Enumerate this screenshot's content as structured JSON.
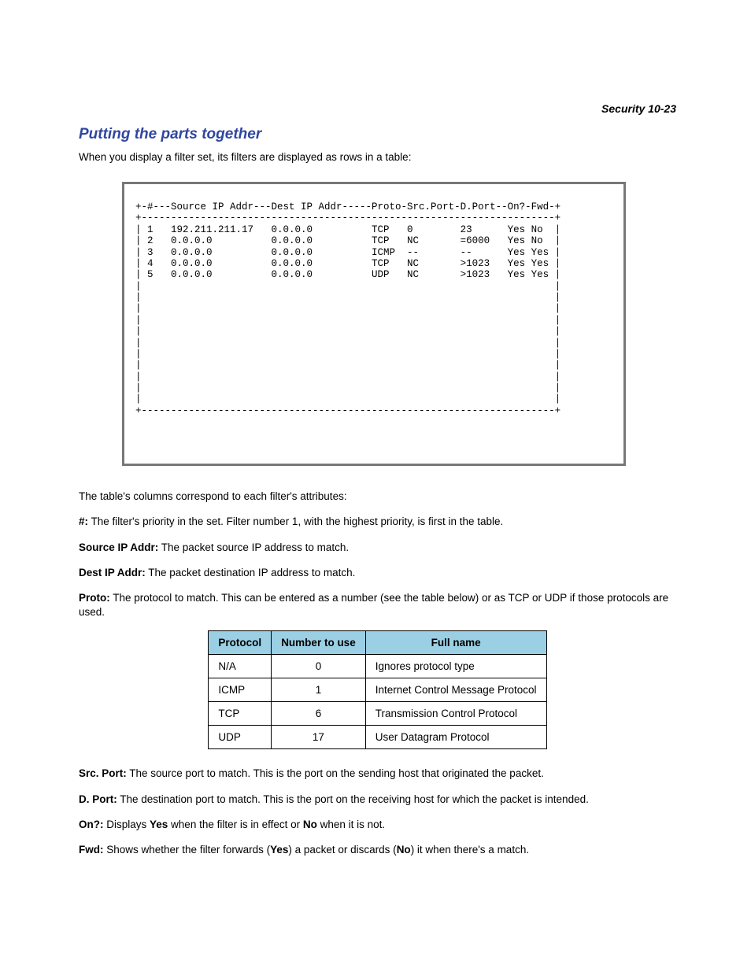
{
  "header": {
    "text": "Security   10-23"
  },
  "heading": "Putting the parts together",
  "intro": "When you display a filter set, its filters are displayed as rows in a table:",
  "terminal": "+-#---Source IP Addr---Dest IP Addr-----Proto-Src.Port-D.Port--On?-Fwd-+\n+----------------------------------------------------------------------+\n| 1   192.211.211.17   0.0.0.0          TCP   0        23      Yes No  |\n| 2   0.0.0.0          0.0.0.0          TCP   NC       =6000   Yes No  |\n| 3   0.0.0.0          0.0.0.0          ICMP  --       --      Yes Yes |\n| 4   0.0.0.0          0.0.0.0          TCP   NC       >1023   Yes Yes |\n| 5   0.0.0.0          0.0.0.0          UDP   NC       >1023   Yes Yes |\n|                                                                      |\n|                                                                      |\n|                                                                      |\n|                                                                      |\n|                                                                      |\n|                                                                      |\n|                                                                      |\n|                                                                      |\n|                                                                      |\n|                                                                      |\n|                                                                      |\n+----------------------------------------------------------------------+",
  "columns_intro": "The table's columns correspond to each filter's attributes:",
  "defs": {
    "hash": {
      "term": "#:",
      "text": " The filter's priority in the set. Filter number 1, with the highest priority, is first in the table."
    },
    "source": {
      "term": "Source IP Addr:",
      "text": " The packet source IP address to match."
    },
    "dest": {
      "term": "Dest IP Addr:",
      "text": " The packet destination IP address to match."
    },
    "proto": {
      "term": "Proto:",
      "text": " The protocol to match. This can be entered as a number (see the table below) or as TCP or UDP if those protocols are used."
    },
    "srcport": {
      "term": "Src. Port:",
      "text": " The source port to match. This is the port on the sending host that originated the packet."
    },
    "dport": {
      "term": "D. Port:",
      "text": " The destination port to match. This is the port on the receiving host for which the packet is intended."
    },
    "on_pre": {
      "term": "On?:",
      "pre": " Displays ",
      "yes": "Yes",
      "mid": " when the filter is in effect or ",
      "no": "No",
      "post": " when it is not."
    },
    "fwd": {
      "term": "Fwd:",
      "pre": " Shows whether the filter forwards (",
      "yes": "Yes",
      "mid": ") a packet or discards (",
      "no": "No",
      "post": ") it when there's a match."
    }
  },
  "table": {
    "headers": [
      "Protocol",
      "Number to use",
      "Full name"
    ],
    "rows": [
      [
        "N/A",
        "0",
        "Ignores protocol type"
      ],
      [
        "ICMP",
        "1",
        "Internet Control Message Protocol"
      ],
      [
        "TCP",
        "6",
        "Transmission Control Protocol"
      ],
      [
        "UDP",
        "17",
        "User Datagram Protocol"
      ]
    ]
  }
}
